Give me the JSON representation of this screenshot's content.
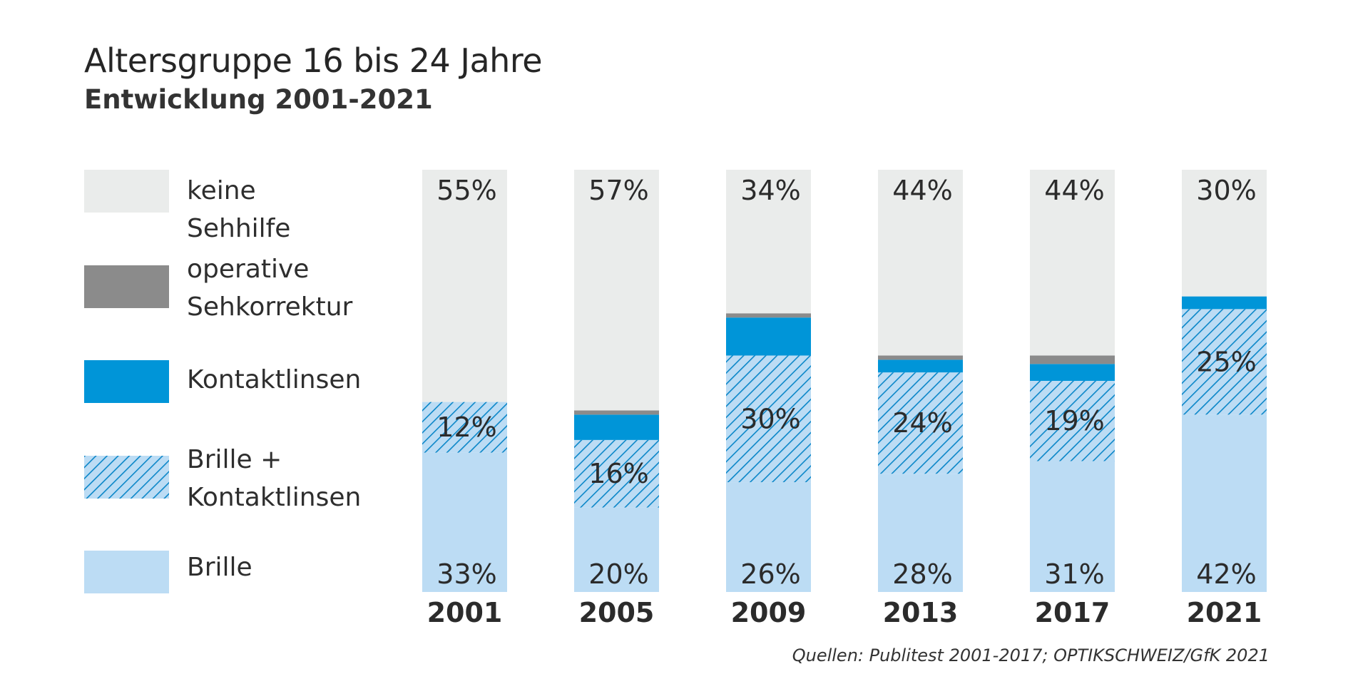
{
  "colors": {
    "none": "#eaeceb",
    "operative": "#8b8b8b",
    "contacts": "#0095d8",
    "both_bg": "#bcdcf4",
    "both_hatch": "#0a86c8",
    "glasses": "#bcdcf4"
  },
  "chart_data": {
    "type": "bar",
    "stacked": true,
    "title": "Altersgruppe 16 bis 24 Jahre",
    "subtitle": "Entwicklung 2001-2021",
    "categories": [
      "2001",
      "2005",
      "2009",
      "2013",
      "2017",
      "2021"
    ],
    "series": [
      {
        "name": "Brille",
        "values": [
          33,
          20,
          26,
          28,
          31,
          42
        ],
        "labels": [
          "33%",
          "20%",
          "26%",
          "28%",
          "31%",
          "42%"
        ]
      },
      {
        "name": "Brille + Kontaktlinsen",
        "values": [
          12,
          16,
          30,
          24,
          19,
          25
        ],
        "labels": [
          "12%",
          "16%",
          "30%",
          "24%",
          "19%",
          "25%"
        ]
      },
      {
        "name": "Kontaktlinsen",
        "values": [
          0,
          6,
          9,
          3,
          4,
          3
        ],
        "labels": [
          "",
          "",
          "",
          "",
          "",
          ""
        ]
      },
      {
        "name": "operative Sehkorrektur",
        "values": [
          0,
          1,
          1,
          1,
          2,
          0
        ],
        "labels": [
          "",
          "",
          "",
          "",
          "",
          ""
        ]
      },
      {
        "name": "keine Sehhilfe",
        "values": [
          55,
          57,
          34,
          44,
          44,
          30
        ],
        "labels": [
          "55%",
          "57%",
          "34%",
          "44%",
          "44%",
          "30%"
        ]
      }
    ],
    "ylim": [
      0,
      100
    ]
  },
  "legend": [
    {
      "key": "none",
      "label": "keine Sehhilfe"
    },
    {
      "key": "operative",
      "label": "operative\nSehkorrektur"
    },
    {
      "key": "contacts",
      "label": "Kontaktlinsen"
    },
    {
      "key": "both",
      "label": "Brille +\nKontaktlinsen"
    },
    {
      "key": "glasses",
      "label": "Brille"
    }
  ],
  "source": "Quellen: Publitest 2001-2017; OPTIKSCHWEIZ/GfK 2021"
}
